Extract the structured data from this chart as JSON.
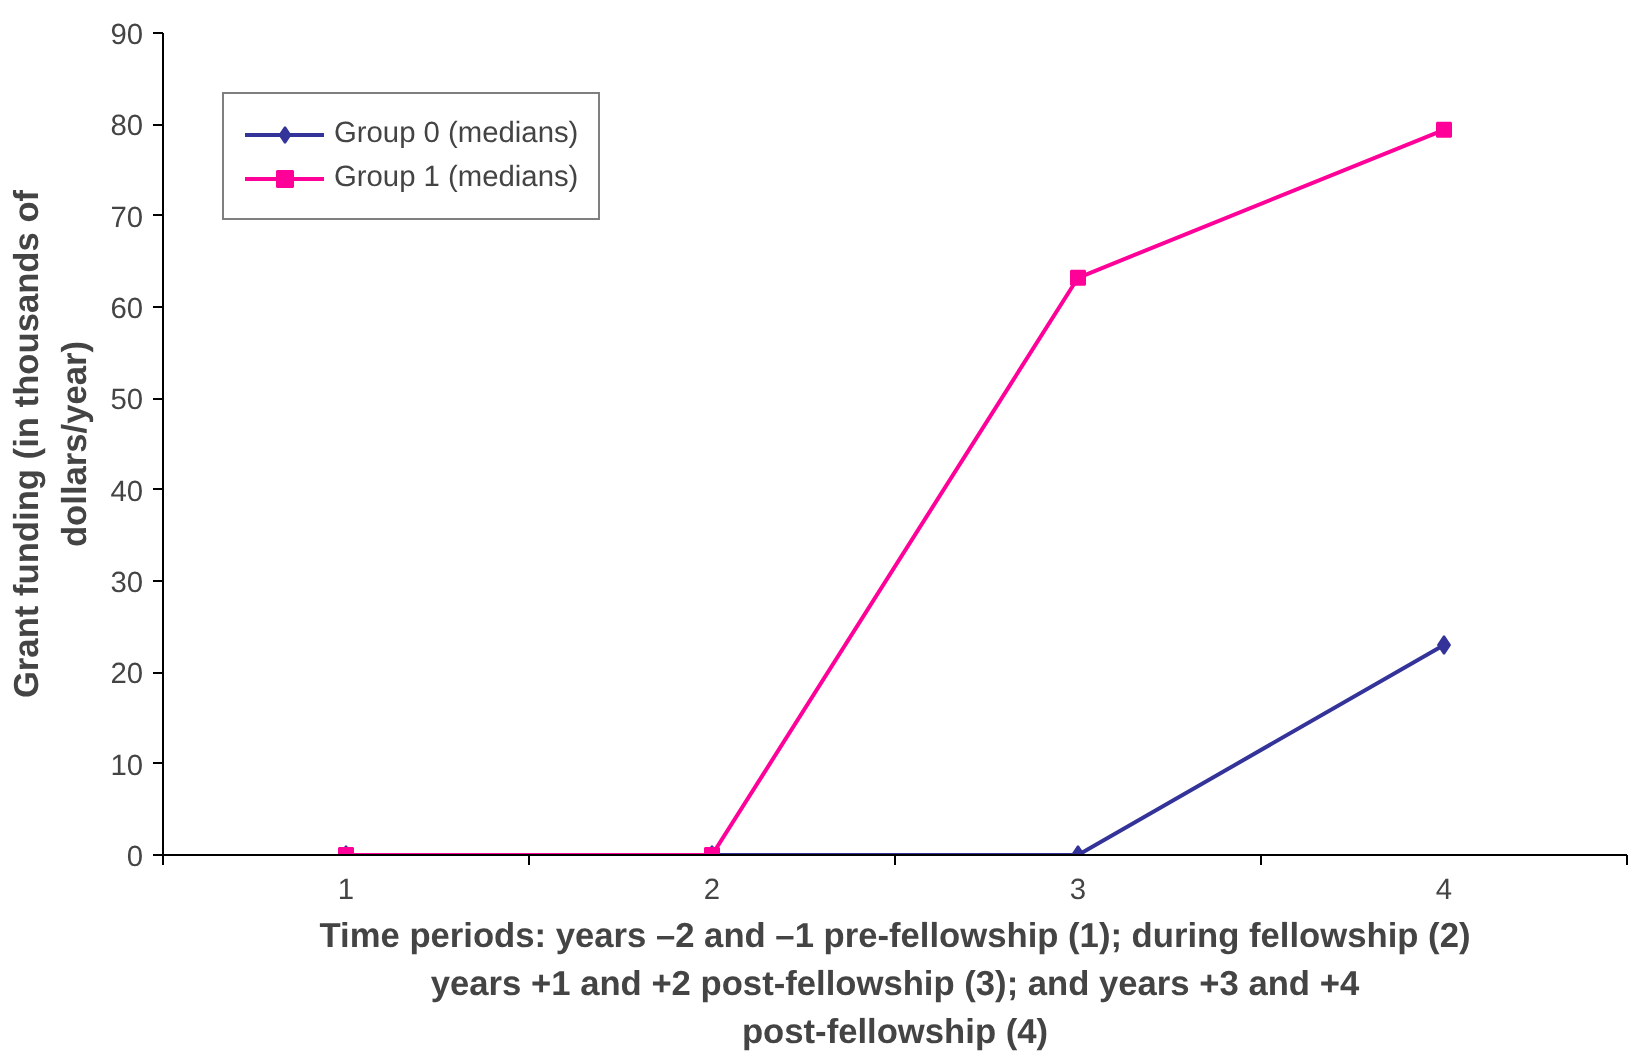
{
  "chart_data": {
    "type": "line",
    "categories": [
      "1",
      "2",
      "3",
      "4"
    ],
    "xlabel": "Time periods: years –2 and –1 pre-fellowship (1); during fellowship (2)\nyears +1 and +2 post-fellowship (3); and years +3 and +4\npost-fellowship (4)",
    "ylabel": "Grant funding (in thousands of\ndollars/year)",
    "ylim": [
      0,
      90
    ],
    "yticks": [
      0,
      10,
      20,
      30,
      40,
      50,
      60,
      70,
      80,
      90
    ],
    "grid": false,
    "legend": "top left",
    "series": [
      {
        "name": "Group 0 (medians)",
        "color": "#333399",
        "marker": "diamond",
        "values": [
          0,
          0,
          0,
          23
        ]
      },
      {
        "name": "Group 1 (medians)",
        "color": "#ff0099",
        "marker": "square",
        "values": [
          0,
          0,
          63.2,
          79.4
        ]
      }
    ]
  }
}
